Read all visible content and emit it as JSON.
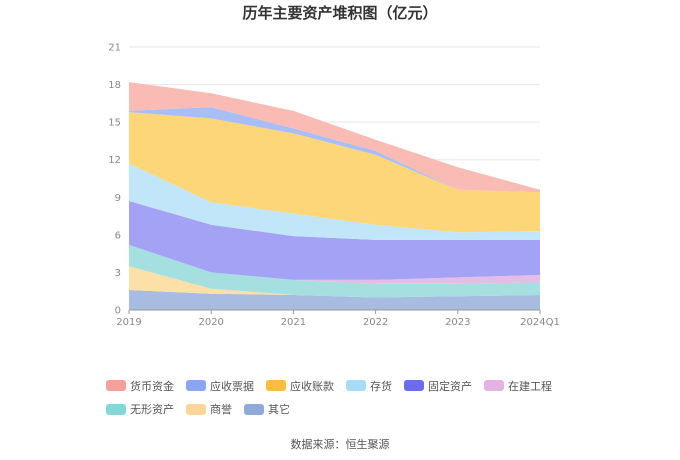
{
  "chart_data": {
    "type": "area",
    "stacked": true,
    "title": "历年主要资产堆积图（亿元）",
    "xlabel": "",
    "ylabel": "",
    "ylim": [
      0,
      21
    ],
    "yticks": [
      0,
      3,
      6,
      9,
      12,
      15,
      18,
      21
    ],
    "categories": [
      "2019",
      "2020",
      "2021",
      "2022",
      "2023",
      "2024Q1"
    ],
    "series": [
      {
        "name": "其它",
        "color": "#a8bbe0",
        "values": [
          1.6,
          1.3,
          1.2,
          1.0,
          1.1,
          1.2
        ]
      },
      {
        "name": "商誉",
        "color": "#fde0a8",
        "values": [
          1.9,
          0.4,
          0.0,
          0.0,
          0.0,
          0.0
        ]
      },
      {
        "name": "无形资产",
        "color": "#a6dfe0",
        "values": [
          1.7,
          1.3,
          1.2,
          1.1,
          1.0,
          1.0
        ]
      },
      {
        "name": "在建工程",
        "color": "#e3bde6",
        "values": [
          0.0,
          0.0,
          0.0,
          0.3,
          0.5,
          0.6
        ]
      },
      {
        "name": "固定资产",
        "color": "#a3a2f5",
        "values": [
          3.5,
          3.8,
          3.5,
          3.2,
          3.0,
          2.8
        ]
      },
      {
        "name": "存货",
        "color": "#c2e6f9",
        "values": [
          3.0,
          1.8,
          1.8,
          1.2,
          0.6,
          0.7
        ]
      },
      {
        "name": "应收账款",
        "color": "#fdd67a",
        "values": [
          4.1,
          6.7,
          6.4,
          5.6,
          3.4,
          3.1
        ]
      },
      {
        "name": "应收票据",
        "color": "#a9bdf6",
        "values": [
          0.1,
          0.9,
          0.4,
          0.3,
          0.0,
          0.0
        ]
      },
      {
        "name": "货币资金",
        "color": "#fbbbb5",
        "values": [
          2.3,
          1.1,
          1.4,
          0.9,
          1.8,
          0.2
        ]
      }
    ],
    "legend_position": "bottom",
    "grid": true
  },
  "legend": [
    {
      "label": "货币资金",
      "color": "#f4a19a"
    },
    {
      "label": "应收票据",
      "color": "#8aa6f3"
    },
    {
      "label": "应收账款",
      "color": "#fbbd3c"
    },
    {
      "label": "存货",
      "color": "#a6dcf7"
    },
    {
      "label": "固定资产",
      "color": "#6c6cf0"
    },
    {
      "label": "在建工程",
      "color": "#e4b2e4"
    },
    {
      "label": "无形资产",
      "color": "#85d6d6"
    },
    {
      "label": "商誉",
      "color": "#fdd49a"
    },
    {
      "label": "其它",
      "color": "#8ea9da"
    }
  ],
  "source": "数据来源：恒生聚源"
}
